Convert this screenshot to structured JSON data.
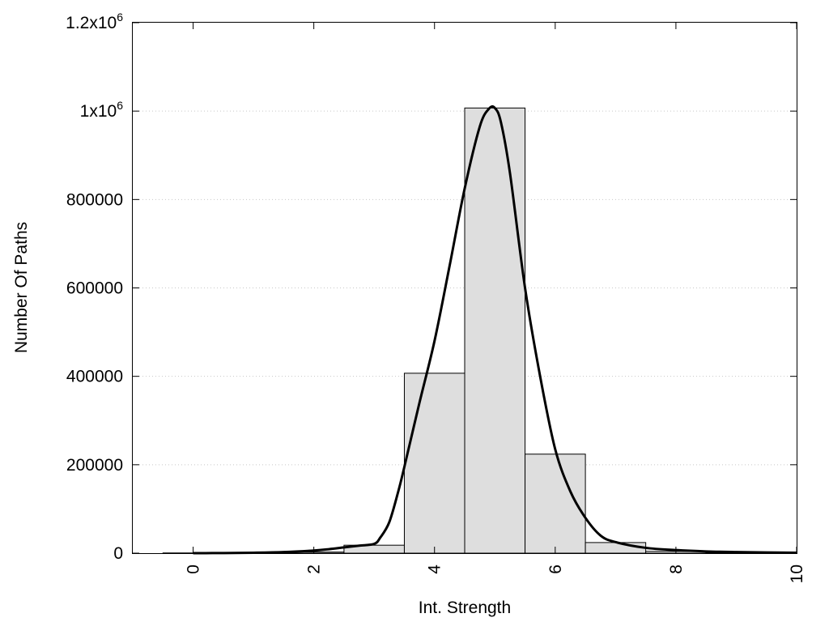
{
  "chart_data": {
    "type": "bar",
    "xlabel": "Int. Strength",
    "ylabel": "Number Of Paths",
    "xlim": [
      -1,
      10
    ],
    "ylim": [
      0,
      1200000
    ],
    "x_ticks": [
      0,
      2,
      4,
      6,
      8,
      10
    ],
    "x_tick_labels": [
      "0",
      "2",
      "4",
      "6",
      "8",
      "10"
    ],
    "y_ticks": [
      {
        "value": 0,
        "mantissa": "0",
        "exp": ""
      },
      {
        "value": 200000,
        "mantissa": "200000",
        "exp": ""
      },
      {
        "value": 400000,
        "mantissa": "400000",
        "exp": ""
      },
      {
        "value": 600000,
        "mantissa": "600000",
        "exp": ""
      },
      {
        "value": 800000,
        "mantissa": "800000",
        "exp": ""
      },
      {
        "value": 1000000,
        "mantissa": "1x10",
        "exp": "6"
      },
      {
        "value": 1200000,
        "mantissa": "1.2x10",
        "exp": "6"
      }
    ],
    "grid": "horizontal dotted",
    "bar_width": 1,
    "bars": [
      {
        "x": 0,
        "value": 500
      },
      {
        "x": 1,
        "value": 800
      },
      {
        "x": 2,
        "value": 2500
      },
      {
        "x": 3,
        "value": 18000
      },
      {
        "x": 4,
        "value": 407000
      },
      {
        "x": 5,
        "value": 1007000
      },
      {
        "x": 6,
        "value": 224000
      },
      {
        "x": 7,
        "value": 24000
      },
      {
        "x": 8,
        "value": 4000
      },
      {
        "x": 9,
        "value": 1000
      }
    ],
    "fit_curve": {
      "x": [
        0,
        0.5,
        1,
        1.5,
        2,
        2.25,
        2.5,
        2.75,
        3,
        3.1,
        3.25,
        3.4,
        3.5,
        3.75,
        4,
        4.25,
        4.5,
        4.75,
        4.9,
        5,
        5.1,
        5.25,
        5.5,
        5.75,
        6,
        6.25,
        6.5,
        6.75,
        7,
        7.5,
        8,
        8.5,
        9,
        9.5,
        10
      ],
      "y": [
        0,
        300,
        1000,
        2500,
        6000,
        9000,
        13000,
        17000,
        21000,
        35000,
        70000,
        140000,
        195000,
        340000,
        480000,
        650000,
        825000,
        965000,
        1005000,
        1007000,
        975000,
        860000,
        600000,
        400000,
        235000,
        140000,
        80000,
        40000,
        25000,
        12000,
        7000,
        4000,
        2500,
        1500,
        1000
      ]
    }
  }
}
